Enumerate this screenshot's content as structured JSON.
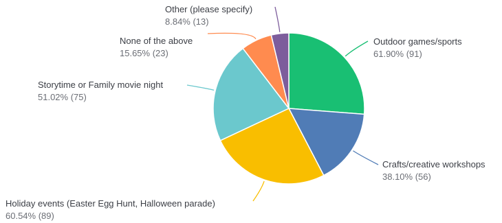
{
  "chart_data": {
    "type": "pie",
    "slices": [
      {
        "label": "Outdoor games/sports",
        "percent": "61.90%",
        "count": "91",
        "value": 91,
        "color": "#19bf73"
      },
      {
        "label": "Crafts/creative workshops",
        "percent": "38.10%",
        "count": "56",
        "value": 56,
        "color": "#507cb6"
      },
      {
        "label": "Holiday events (Easter Egg Hunt, Halloween parade)",
        "percent": "60.54%",
        "count": "89",
        "value": 89,
        "color": "#f9be00"
      },
      {
        "label": "Storytime or Family movie night",
        "percent": "51.02%",
        "count": "75",
        "value": 75,
        "color": "#6bc8cd"
      },
      {
        "label": "None of the above",
        "percent": "15.65%",
        "count": "23",
        "value": 23,
        "color": "#ff8b4f"
      },
      {
        "label": "Other (please specify)",
        "percent": "8.84%",
        "count": "13",
        "value": 13,
        "color": "#7d5d9c"
      }
    ]
  }
}
